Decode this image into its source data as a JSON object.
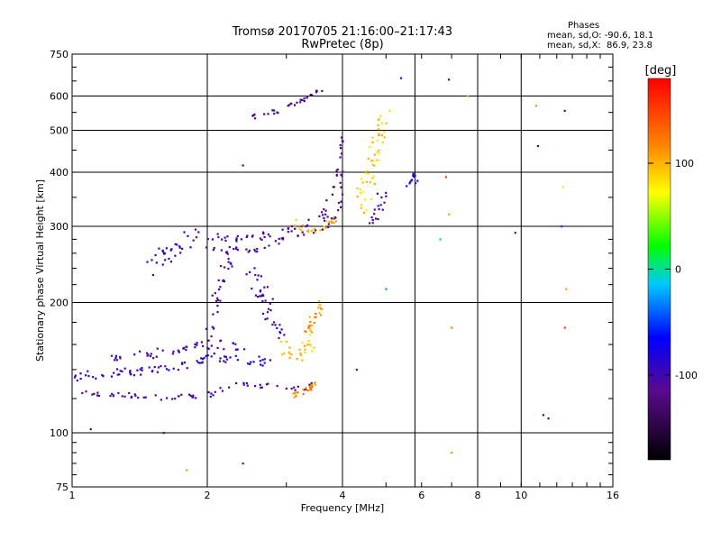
{
  "header": {
    "title": "Tromsø 20170705 21:16:00–21:17:43",
    "subtitle": "RwPretec (8p)"
  },
  "phase_stats": {
    "label": "Phases",
    "line_o": "mean, sd,O: -90.6, 18.1",
    "line_x": "mean, sd,X:  86.9, 23.8"
  },
  "colorbar": {
    "label": "[deg]",
    "ticks": [
      "100",
      "0",
      "-100"
    ],
    "tick_values": [
      100,
      0,
      -100
    ],
    "range": [
      -180,
      180
    ]
  },
  "chart_data": {
    "type": "scatter",
    "xlabel": "Frequency [MHz]",
    "ylabel": "Stationary phase Virtual Height [km]",
    "xscale": "log",
    "yscale": "log",
    "xlim": [
      1,
      16
    ],
    "ylim": [
      75,
      750
    ],
    "x_ticks": [
      1,
      2,
      4,
      6,
      8,
      10,
      16
    ],
    "x_tick_labels": [
      "1",
      "2",
      "4",
      "6",
      "8",
      "10",
      "16"
    ],
    "y_ticks": [
      75,
      100,
      200,
      300,
      400,
      500,
      600,
      750
    ],
    "y_tick_labels": [
      "75",
      "100",
      "200",
      "300",
      "400",
      "500",
      "600",
      "750"
    ],
    "grid_x": [
      2,
      4,
      5.8,
      8,
      10
    ],
    "grid_y": [
      100,
      200,
      300,
      400,
      500,
      600
    ],
    "grid": true,
    "color_encoding": "phase [deg]",
    "traces": [
      {
        "x": [
          1.0,
          1.6,
          2.0,
          2.3,
          2.9,
          3.2,
          3.5
        ],
        "y": [
          125,
          120,
          122,
          130,
          128,
          126,
          130
        ],
        "phase": -110,
        "density": 0.004,
        "spread": 6
      },
      {
        "x": [
          1.0,
          1.35,
          1.7,
          2.0,
          2.4,
          2.8
        ],
        "y": [
          135,
          138,
          140,
          150,
          148,
          145
        ],
        "phase": -95,
        "density": 0.006,
        "spread": 10
      },
      {
        "x": [
          1.2,
          1.5,
          1.8,
          2.1,
          2.5
        ],
        "y": [
          150,
          152,
          158,
          160,
          155
        ],
        "phase": -100,
        "density": 0.005,
        "spread": 10
      },
      {
        "x": [
          2.0,
          2.5,
          2.9,
          3.3,
          3.7,
          3.95,
          4.0
        ],
        "y": [
          265,
          262,
          278,
          290,
          300,
          330,
          400
        ],
        "phase": -115,
        "density": 0.004,
        "spread": 6
      },
      {
        "x": [
          2.0,
          2.5,
          2.9,
          3.3,
          3.7
        ],
        "y": [
          285,
          280,
          292,
          305,
          315
        ],
        "phase": -105,
        "density": 0.005,
        "spread": 8
      },
      {
        "x": [
          3.6,
          3.8,
          3.95,
          4.0
        ],
        "y": [
          320,
          360,
          420,
          500
        ],
        "phase": -120,
        "density": 0.003,
        "spread": 5
      },
      {
        "x": [
          2.5,
          2.9,
          3.3,
          3.6
        ],
        "y": [
          535,
          555,
          590,
          625
        ],
        "phase": -120,
        "density": 0.006,
        "spread": 5
      },
      {
        "x": [
          3.1,
          3.3,
          3.5,
          3.9
        ],
        "y": [
          305,
          300,
          295,
          315
        ],
        "phase": 100,
        "density": 0.006,
        "spread": 10
      },
      {
        "x": [
          2.9,
          3.2,
          3.5
        ],
        "y": [
          160,
          150,
          165
        ],
        "phase": 95,
        "density": 0.008,
        "spread": 20
      },
      {
        "x": [
          3.1,
          3.3,
          3.5
        ],
        "y": [
          122,
          125,
          130
        ],
        "phase": 115,
        "density": 0.012,
        "spread": 6
      },
      {
        "x": [
          4.4,
          4.6,
          4.8,
          4.95
        ],
        "y": [
          330,
          400,
          470,
          540
        ],
        "phase": 90,
        "density": 0.008,
        "spread": 25
      },
      {
        "x": [
          4.6,
          4.8,
          4.95
        ],
        "y": [
          310,
          330,
          360
        ],
        "phase": -110,
        "density": 0.008,
        "spread": 15
      },
      {
        "x": [
          5.6,
          5.75,
          5.85
        ],
        "y": [
          375,
          385,
          395
        ],
        "phase": -80,
        "density": 0.012,
        "spread": 10
      },
      {
        "x": [
          2.0,
          2.1,
          2.2,
          2.3
        ],
        "y": [
          160,
          200,
          240,
          280
        ],
        "phase": -105,
        "density": 0.005,
        "spread": 20
      },
      {
        "x": [
          1.5,
          1.7,
          1.9
        ],
        "y": [
          240,
          270,
          290
        ],
        "phase": -95,
        "density": 0.008,
        "spread": 20
      },
      {
        "x": [
          2.5,
          2.7,
          2.9
        ],
        "y": [
          240,
          200,
          170
        ],
        "phase": -100,
        "density": 0.008,
        "spread": 20
      },
      {
        "x": [
          3.3,
          3.45,
          3.6
        ],
        "y": [
          170,
          185,
          200
        ],
        "phase": 110,
        "density": 0.01,
        "spread": 15
      }
    ],
    "scatter_points": [
      {
        "x": 6.8,
        "y": 390,
        "phase": 150
      },
      {
        "x": 6.9,
        "y": 655,
        "phase": -110
      },
      {
        "x": 7.0,
        "y": 175,
        "phase": 120
      },
      {
        "x": 7.0,
        "y": 90,
        "phase": 110
      },
      {
        "x": 7.6,
        "y": 600,
        "phase": 105
      },
      {
        "x": 6.6,
        "y": 280,
        "phase": 0
      },
      {
        "x": 6.9,
        "y": 320,
        "phase": 40
      },
      {
        "x": 9.7,
        "y": 290,
        "phase": -110
      },
      {
        "x": 10.8,
        "y": 570,
        "phase": 110
      },
      {
        "x": 10.9,
        "y": 460,
        "phase": -80
      },
      {
        "x": 11.2,
        "y": 110,
        "phase": -105
      },
      {
        "x": 11.5,
        "y": 108,
        "phase": -120
      },
      {
        "x": 12.5,
        "y": 555,
        "phase": -100
      },
      {
        "x": 12.4,
        "y": 370,
        "phase": 80
      },
      {
        "x": 12.3,
        "y": 300,
        "phase": -50
      },
      {
        "x": 12.6,
        "y": 215,
        "phase": 110
      },
      {
        "x": 12.5,
        "y": 175,
        "phase": 150
      },
      {
        "x": 2.4,
        "y": 85,
        "phase": -110
      },
      {
        "x": 1.6,
        "y": 100,
        "phase": -120
      },
      {
        "x": 1.8,
        "y": 82,
        "phase": 110
      },
      {
        "x": 4.3,
        "y": 140,
        "phase": -110
      },
      {
        "x": 1.1,
        "y": 102,
        "phase": -100
      },
      {
        "x": 5.0,
        "y": 215,
        "phase": -30
      },
      {
        "x": 5.4,
        "y": 660,
        "phase": -100
      },
      {
        "x": 2.4,
        "y": 415,
        "phase": -100
      }
    ]
  }
}
